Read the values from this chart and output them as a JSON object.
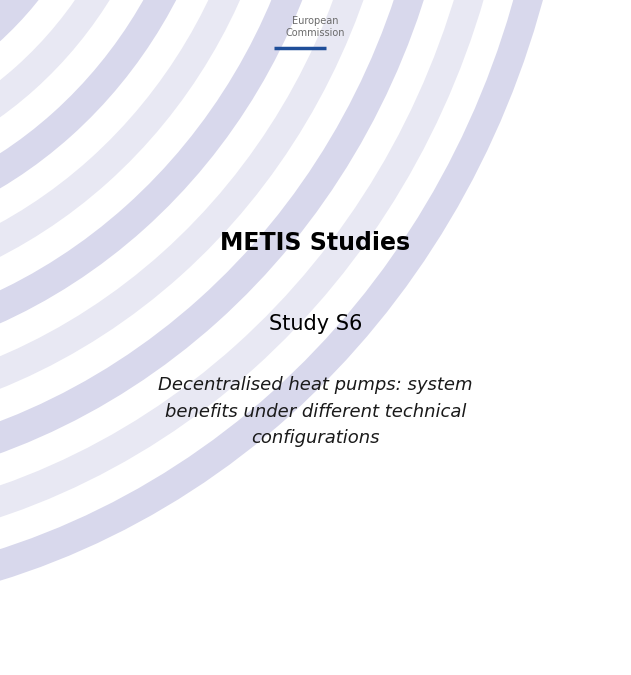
{
  "bg_color": "#ffffff",
  "ec_text": "European\nCommission",
  "ec_text_color": "#6b6b6b",
  "ec_bar_color": "#1f4e99",
  "title1": "METIS Studies",
  "title1_color": "#000000",
  "title1_fontsize": 17,
  "title2": "Study S6",
  "title2_color": "#000000",
  "title2_fontsize": 15,
  "subtitle": "Decentralised heat pumps: system\nbenefits under different technical\nconfigurations",
  "subtitle_color": "#1a1a1a",
  "subtitle_fontsize": 13,
  "stripe_colors": [
    "#e8e8f3",
    "#d8d8ec",
    "#e8e8f3",
    "#d8d8ec",
    "#e8e8f3",
    "#d8d8ec",
    "#e8e8f3",
    "#d8d8ec",
    "#e8e8f3",
    "#d8d8ec"
  ]
}
